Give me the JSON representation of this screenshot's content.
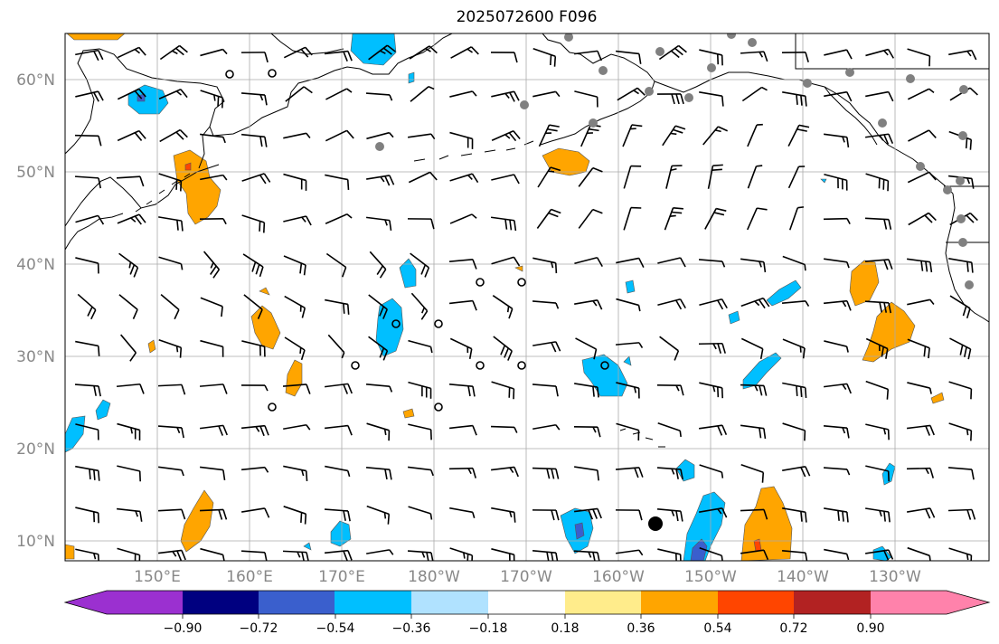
{
  "title": "2025072600 F096",
  "lon_labels": [
    "150°E",
    "160°E",
    "170°E",
    "180°W",
    "170°W",
    "160°W",
    "150°W",
    "140°W",
    "130°W"
  ],
  "lat_labels": [
    "60°N",
    "50°N",
    "40°N",
    "30°N",
    "20°N",
    "10°N"
  ],
  "colorbar": {
    "tick_labels": [
      "−0.90",
      "−0.72",
      "−0.54",
      "−0.36",
      "−0.18",
      "0.18",
      "0.36",
      "0.54",
      "0.72",
      "0.90"
    ],
    "colors": [
      "#9b30d0",
      "#000080",
      "#3a5fcd",
      "#00bfff",
      "#b0e2ff",
      "#ffffff",
      "#ffec8b",
      "#ffa500",
      "#ff4500",
      "#b22222",
      "#ff82ab"
    ]
  },
  "colors": {
    "coast": "#000000",
    "grid": "#aaaaaa",
    "station_gray": "#808080",
    "pos_light": "#ffec8b",
    "pos_mid": "#ffa500",
    "pos_high": "#ff4500",
    "neg_light": "#b0e2ff",
    "neg_mid": "#00bfff",
    "neg_high": "#3a5fcd"
  }
}
